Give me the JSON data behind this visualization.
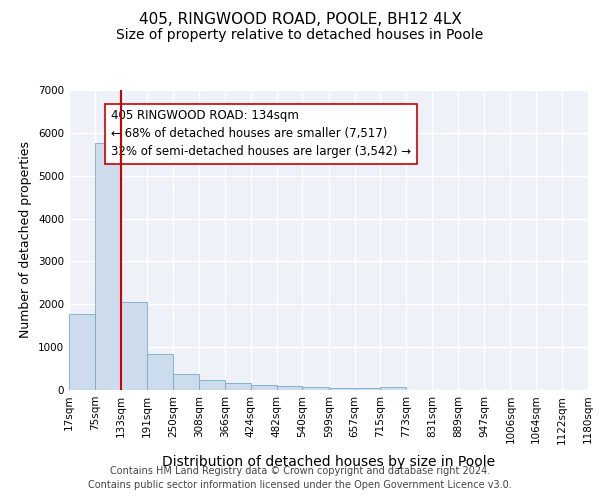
{
  "title1": "405, RINGWOOD ROAD, POOLE, BH12 4LX",
  "title2": "Size of property relative to detached houses in Poole",
  "xlabel": "Distribution of detached houses by size in Poole",
  "ylabel": "Number of detached properties",
  "bar_edges": [
    17,
    75,
    133,
    191,
    250,
    308,
    366,
    424,
    482,
    540,
    599,
    657,
    715,
    773,
    831,
    889,
    947,
    1006,
    1064,
    1122,
    1180
  ],
  "bar_heights": [
    1780,
    5760,
    2050,
    840,
    370,
    230,
    155,
    110,
    90,
    65,
    55,
    50,
    80,
    0,
    0,
    0,
    0,
    0,
    0,
    0
  ],
  "bar_color": "#ccdcec",
  "bar_edge_color": "#7aaac8",
  "property_line_x": 133,
  "property_line_color": "#cc0000",
  "annotation_text": "405 RINGWOOD ROAD: 134sqm\n← 68% of detached houses are smaller (7,517)\n32% of semi-detached houses are larger (3,542) →",
  "annotation_box_facecolor": "#ffffff",
  "annotation_box_edgecolor": "#cc0000",
  "ylim": [
    0,
    7000
  ],
  "yticks": [
    0,
    1000,
    2000,
    3000,
    4000,
    5000,
    6000,
    7000
  ],
  "tick_labels": [
    "17sqm",
    "75sqm",
    "133sqm",
    "191sqm",
    "250sqm",
    "308sqm",
    "366sqm",
    "424sqm",
    "482sqm",
    "540sqm",
    "599sqm",
    "657sqm",
    "715sqm",
    "773sqm",
    "831sqm",
    "889sqm",
    "947sqm",
    "1006sqm",
    "1064sqm",
    "1122sqm",
    "1180sqm"
  ],
  "footer_text": "Contains HM Land Registry data © Crown copyright and database right 2024.\nContains public sector information licensed under the Open Government Licence v3.0.",
  "bg_color": "#eef2f8",
  "grid_color": "#ffffff",
  "title1_fontsize": 11,
  "title2_fontsize": 10,
  "xlabel_fontsize": 10,
  "ylabel_fontsize": 9,
  "tick_fontsize": 7.5,
  "footer_fontsize": 7,
  "annot_fontsize": 8.5
}
